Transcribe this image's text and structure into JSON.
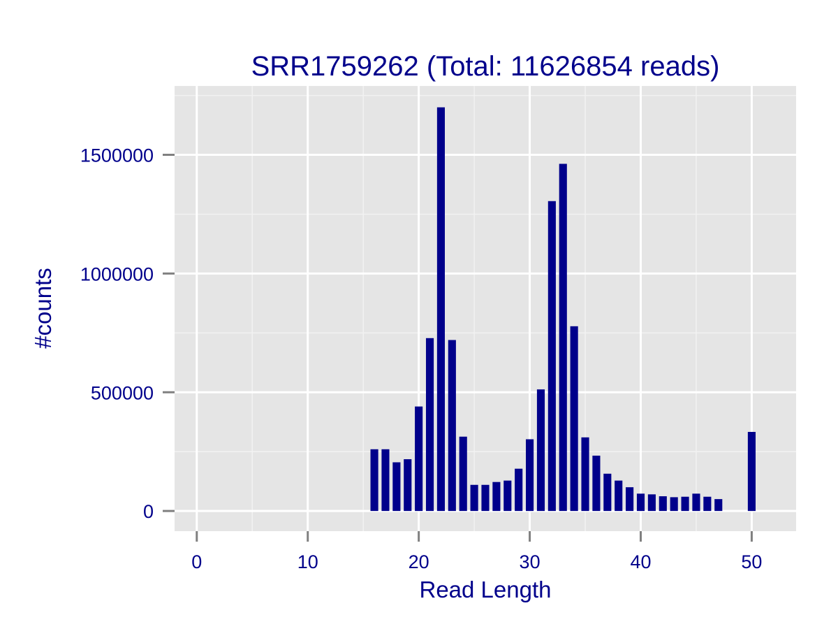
{
  "chart_data": {
    "type": "bar",
    "title": "SRR1759262 (Total: 11626854 reads)",
    "xlabel": "Read Length",
    "ylabel": "#counts",
    "xlim": [
      -2,
      54
    ],
    "ylim": [
      -85000,
      1790000
    ],
    "xticks": [
      0,
      10,
      20,
      30,
      40,
      50
    ],
    "yticks": [
      0,
      500000,
      1000000,
      1500000
    ],
    "xtick_labels": [
      "0",
      "10",
      "20",
      "30",
      "40",
      "50"
    ],
    "ytick_labels": [
      "0",
      "500000",
      "1000000",
      "1500000"
    ],
    "grid": true,
    "legend": "none",
    "colors": {
      "bar": "#00008B",
      "panel_background": "#E5E5E5",
      "grid_major": "#FFFFFF",
      "grid_minor": "#F2F2F2",
      "tick": "#808080",
      "text": "#00008B"
    },
    "x": [
      16,
      17,
      18,
      19,
      20,
      21,
      22,
      23,
      24,
      25,
      26,
      27,
      28,
      29,
      30,
      31,
      32,
      33,
      34,
      35,
      36,
      37,
      38,
      39,
      40,
      41,
      42,
      43,
      44,
      45,
      46,
      47,
      50
    ],
    "values": [
      260000,
      260000,
      205000,
      218000,
      440000,
      728000,
      1700000,
      720000,
      313000,
      110000,
      110000,
      122000,
      128000,
      178000,
      302000,
      512000,
      1305000,
      1462000,
      778000,
      310000,
      233000,
      157000,
      128000,
      100000,
      73000,
      70000,
      62000,
      58000,
      60000,
      73000,
      60000,
      50000,
      333000
    ]
  }
}
